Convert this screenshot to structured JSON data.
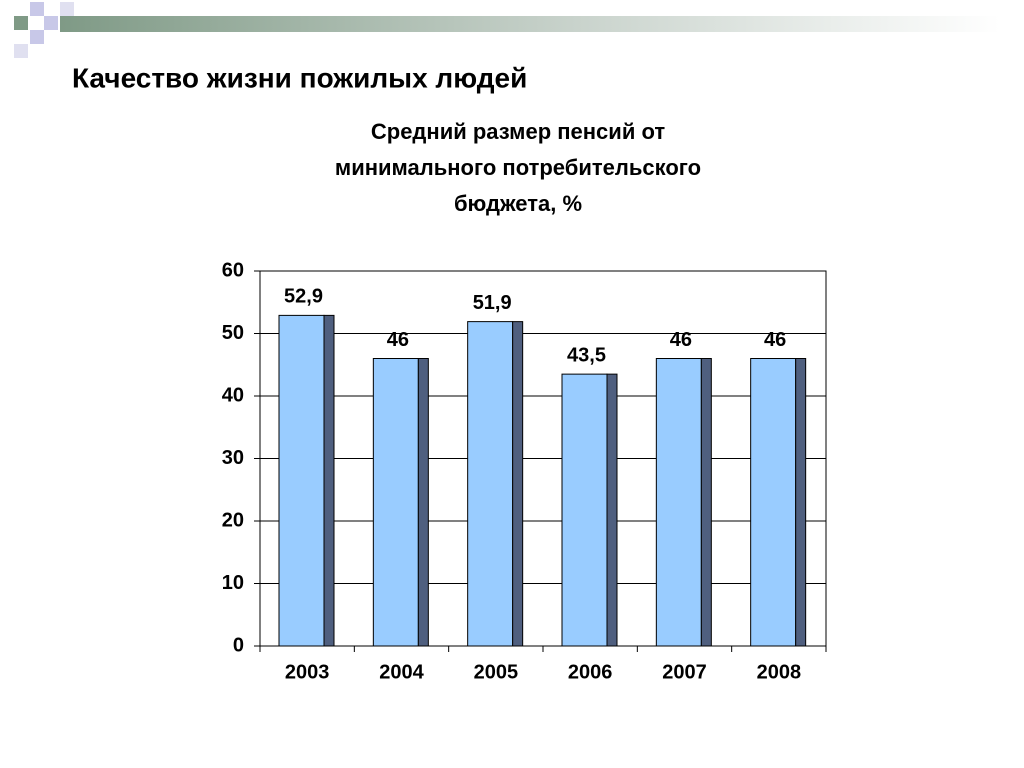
{
  "slide_title": "Качество жизни пожилых людей",
  "chart_data": {
    "type": "bar",
    "title": [
      "Средний размер пенсий от",
      "минимального потребительского",
      "бюджета, %"
    ],
    "categories": [
      "2003",
      "2004",
      "2005",
      "2006",
      "2007",
      "2008"
    ],
    "values": [
      52.9,
      46,
      51.9,
      43.5,
      46,
      46
    ],
    "value_labels": [
      "52,9",
      "46",
      "51,9",
      "43,5",
      "46",
      "46"
    ],
    "color": "#99ccff",
    "side_color": "#4f5f7f",
    "ylim": [
      0,
      60
    ],
    "yticks": [
      0,
      10,
      20,
      30,
      40,
      50,
      60
    ],
    "grid": true
  }
}
